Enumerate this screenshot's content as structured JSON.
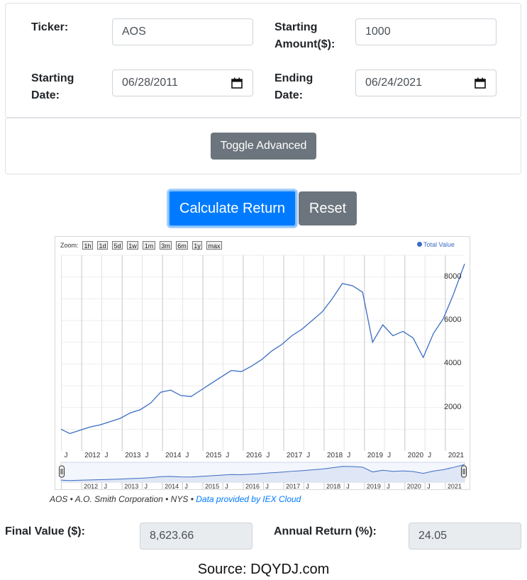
{
  "form": {
    "ticker_label": "Ticker:",
    "ticker_value": "AOS",
    "amount_label_1": "Starting",
    "amount_label_2": "Amount($):",
    "amount_value": "1000",
    "start_label_1": "Starting",
    "start_label_2": "Date:",
    "start_value": "06/28/2011",
    "end_label_1": "Ending",
    "end_label_2": "Date:",
    "end_value": "06/24/2021"
  },
  "advanced": {
    "toggle_label": "Toggle Advanced"
  },
  "actions": {
    "calculate_label": "Calculate Return",
    "reset_label": "Reset"
  },
  "chart": {
    "zoom_label": "Zoom:",
    "zoom_options": [
      "1h",
      "1d",
      "5d",
      "1w",
      "1m",
      "3m",
      "6m",
      "1y",
      "max"
    ],
    "legend_label": "Total Value",
    "x_ticks": [
      "J",
      "2012",
      "J",
      "2013",
      "J",
      "2014",
      "J",
      "2015",
      "J",
      "2016",
      "J",
      "2017",
      "J",
      "2018",
      "J",
      "2019",
      "J",
      "2020",
      "J",
      "2021"
    ],
    "nav_ticks": [
      "2012",
      "J",
      "2013",
      "J",
      "2014",
      "J",
      "2015",
      "J",
      "2016",
      "J",
      "2017",
      "J",
      "2018",
      "J",
      "2019",
      "J",
      "2020",
      "J",
      "2021"
    ],
    "y_ticks": [
      "2000",
      "4000",
      "6000",
      "8000"
    ],
    "caption": "AOS • A.O. Smith Corporation • NYS •",
    "caption_link": "Data provided by IEX Cloud"
  },
  "chart_data": {
    "type": "line",
    "title": "",
    "xlabel": "",
    "ylabel": "",
    "x_range": [
      "2011-06-28",
      "2021-06-24"
    ],
    "ylim": [
      0,
      9000
    ],
    "grid": true,
    "legend": "top-right",
    "series": [
      {
        "name": "Total Value",
        "color": "#3b6cc4",
        "x": [
          "2011-06",
          "2011-09",
          "2011-12",
          "2012-03",
          "2012-06",
          "2012-09",
          "2012-12",
          "2013-03",
          "2013-06",
          "2013-09",
          "2013-12",
          "2014-03",
          "2014-06",
          "2014-09",
          "2014-12",
          "2015-03",
          "2015-06",
          "2015-09",
          "2015-12",
          "2016-03",
          "2016-06",
          "2016-09",
          "2016-12",
          "2017-03",
          "2017-06",
          "2017-09",
          "2017-12",
          "2018-03",
          "2018-06",
          "2018-09",
          "2018-12",
          "2019-03",
          "2019-06",
          "2019-09",
          "2019-12",
          "2020-03",
          "2020-06",
          "2020-09",
          "2020-12",
          "2021-03",
          "2021-06"
        ],
        "values": [
          1000,
          800,
          950,
          1100,
          1200,
          1350,
          1500,
          1750,
          1900,
          2200,
          2700,
          2800,
          2550,
          2500,
          2800,
          3100,
          3400,
          3700,
          3650,
          3900,
          4200,
          4600,
          4900,
          5300,
          5600,
          6000,
          6400,
          7000,
          7700,
          7600,
          7300,
          5000,
          5800,
          5300,
          5500,
          5200,
          4300,
          5400,
          6100,
          7200,
          8600
        ]
      }
    ]
  },
  "results": {
    "final_label": "Final Value ($):",
    "final_value": "8,623.66",
    "annual_label": "Annual Return (%):",
    "annual_value": "24.05"
  },
  "source": "Source: DQYDJ.com"
}
